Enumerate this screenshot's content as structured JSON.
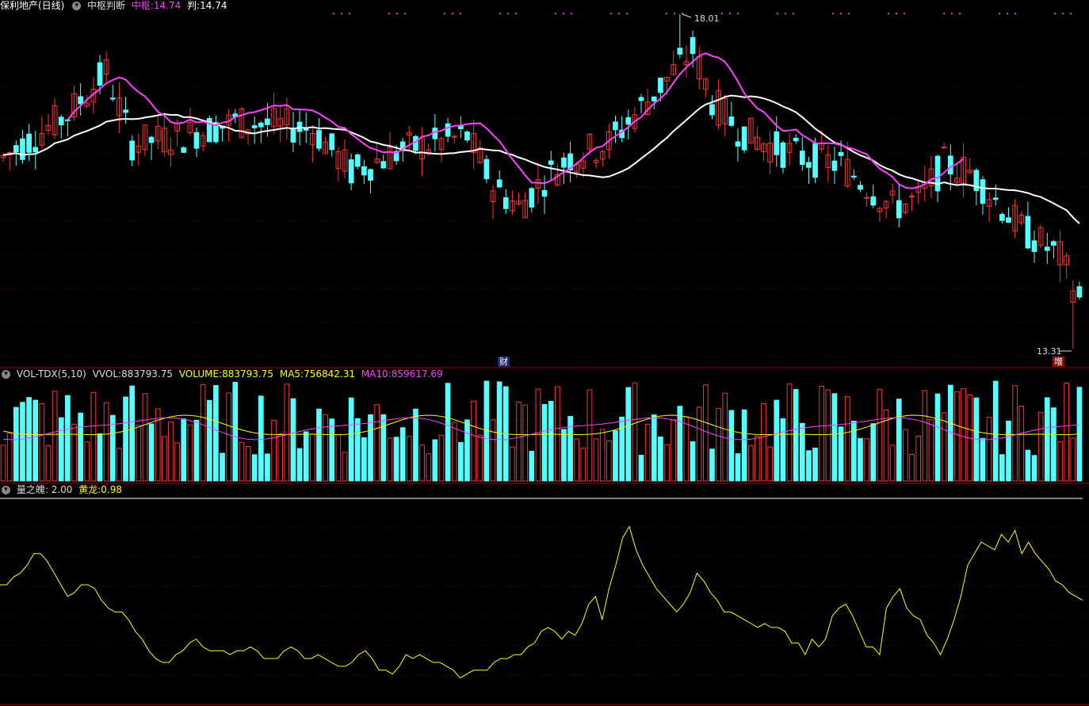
{
  "main_panel": {
    "title": "保利地产(日线)",
    "indicator_name": "中枢判断",
    "zhongshu_label": "中枢:",
    "zhongshu_value": "14.74",
    "pan_label": "判:",
    "pan_value": "14.74",
    "high_label": "18.01",
    "low_label": "13.31",
    "badge_cai": "财",
    "badge_zeng": "增"
  },
  "volume_panel": {
    "title": "VOL-TDX(5,10)",
    "vvol_label": "VVOL:",
    "vvol_value": "883793.75",
    "volume_label": "VOLUME:",
    "volume_value": "883793.75",
    "ma5_label": "MA5:",
    "ma5_value": "756842.31",
    "ma10_label": "MA10:",
    "ma10_value": "859617.69"
  },
  "osc_panel": {
    "title": "量之魄",
    "v1": ": 2.00",
    "label2": "黄龙:",
    "v2": "0.98"
  },
  "colors": {
    "up": "#ff3232",
    "down": "#54ffff",
    "ma_white": "#ffffff",
    "ma_magenta": "#ff40ff",
    "yellow": "#ffff00",
    "grid": "#800000"
  },
  "chart_data": {
    "type": "candlestick",
    "ohlc_endpoints": {
      "high": 18.01,
      "low": 13.31
    },
    "volume_closeness_oscillator": [
      3,
      3,
      3.2,
      3.3,
      3.5,
      3.8,
      3.8,
      3.6,
      3.3,
      3,
      2.7,
      2.8,
      3,
      3,
      2.9,
      2.6,
      2.4,
      2.3,
      2.3,
      2.1,
      1.8,
      1.6,
      1.3,
      1.1,
      1,
      1,
      1.2,
      1.3,
      1.5,
      1.6,
      1.4,
      1.3,
      1.3,
      1.3,
      1.2,
      1.3,
      1.3,
      1.4,
      1.3,
      1.1,
      1.1,
      1.1,
      1.3,
      1.4,
      1.3,
      1.1,
      1.1,
      1.2,
      1.1,
      1,
      0.9,
      0.9,
      1,
      1.2,
      1.3,
      1.1,
      0.8,
      0.8,
      0.7,
      0.9,
      1.2,
      1.1,
      1.2,
      1.1,
      1,
      1,
      0.9,
      0.8,
      0.6,
      0.7,
      0.8,
      0.8,
      0.8,
      1,
      1.1,
      1.1,
      1.2,
      1.2,
      1.4,
      1.5,
      1.8,
      1.9,
      1.8,
      1.6,
      1.8,
      1.7,
      2,
      2.5,
      2.7,
      2.1,
      2.9,
      3.5,
      4.2,
      4.5,
      3.9,
      3.5,
      3.2,
      2.9,
      2.7,
      2.5,
      2.3,
      2.5,
      2.8,
      3.3,
      3.1,
      2.8,
      2.6,
      2.3,
      2.3,
      2.2,
      2.1,
      2.0,
      1.9,
      2,
      1.9,
      1.9,
      1.8,
      1.5,
      1.5,
      1.2,
      1.6,
      1.4,
      1.6,
      2.2,
      2.4,
      2.5,
      2.2,
      1.8,
      1.4,
      1.4,
      1.2,
      2.4,
      2.7,
      2.9,
      2.4,
      2.2,
      2.1,
      1.7,
      1.5,
      1.2,
      1.6,
      2.1,
      2.7,
      3.5,
      3.8,
      4.1,
      4.0,
      3.9,
      4.3,
      4.1,
      4.4,
      3.8,
      4.1,
      3.8,
      3.6,
      3.4,
      3.1,
      3.0,
      2.8,
      2.7,
      2.6
    ]
  }
}
